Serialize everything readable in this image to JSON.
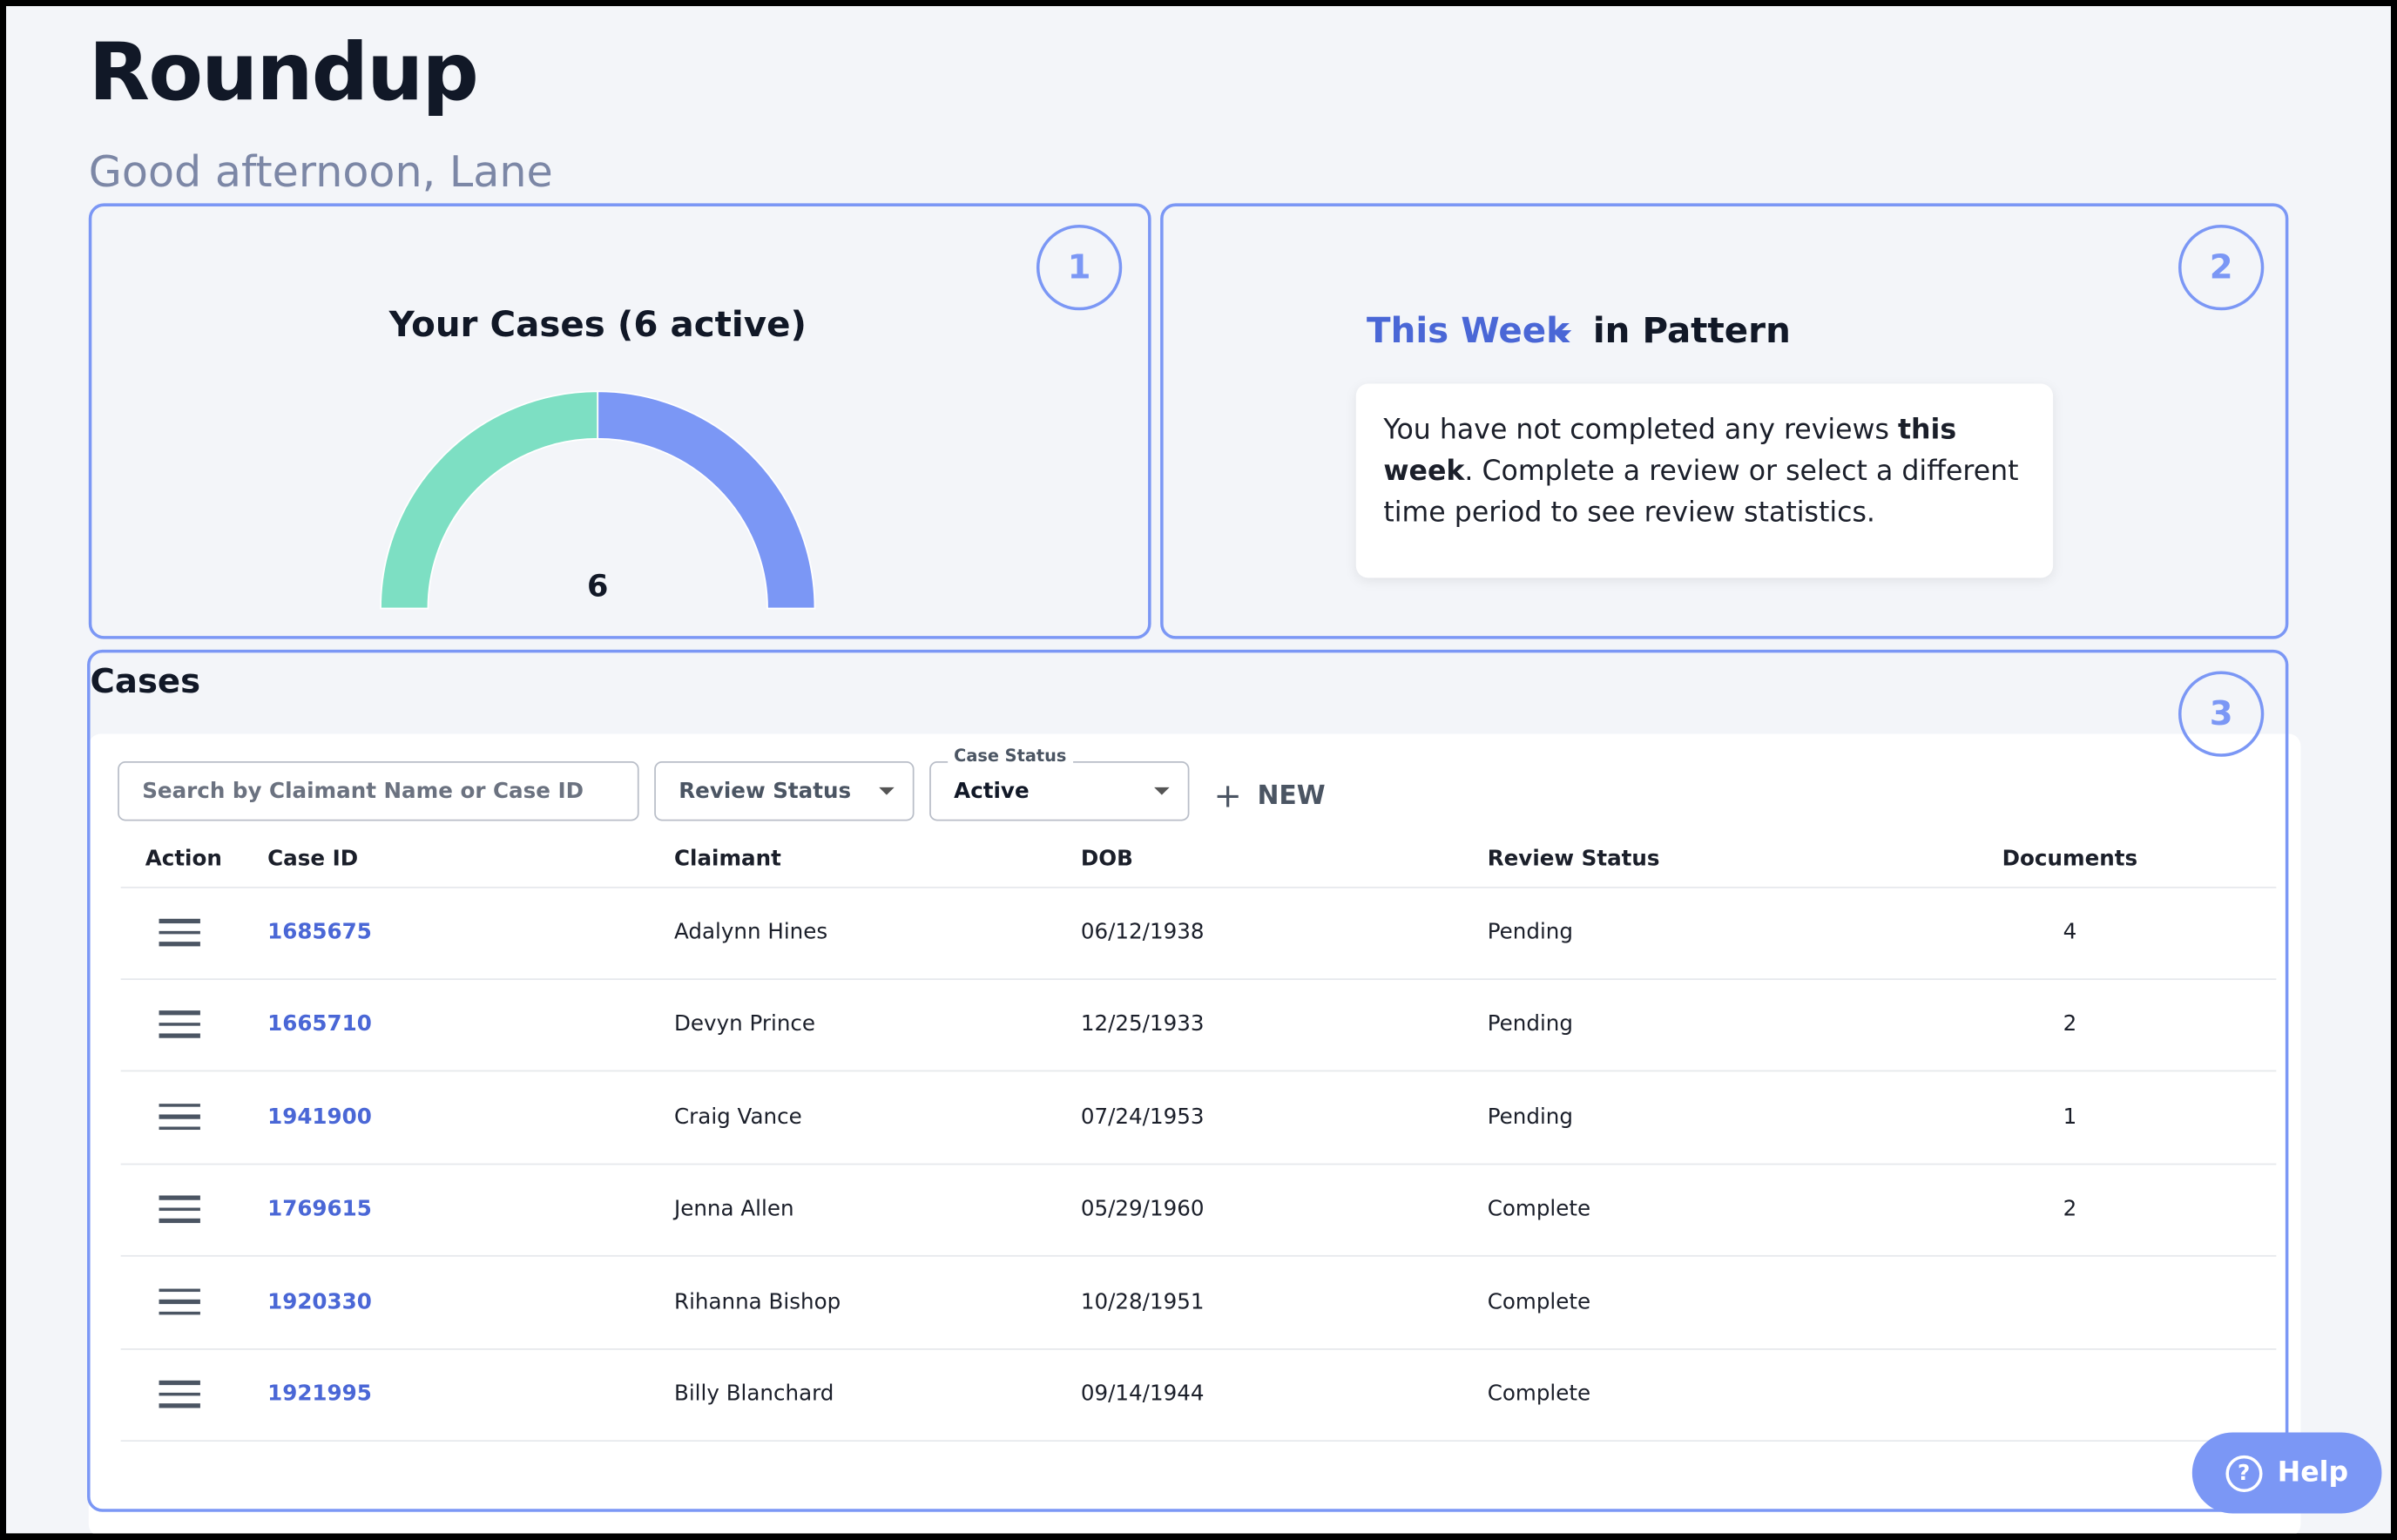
{
  "header": {
    "title": "Roundup",
    "greeting": "Good afternoon, Lane"
  },
  "panels": [
    {
      "badge": "1",
      "title": "Your Cases (6 active)",
      "gauge": {
        "center_label": "6",
        "segments": [
          {
            "value": 3,
            "color": "#7ddfc3"
          },
          {
            "value": 3,
            "color": "#7b97f5"
          }
        ]
      }
    },
    {
      "badge": "2",
      "period": "This Week",
      "suffix": "in Pattern",
      "message": [
        "You have not completed any reviews ",
        "this week",
        ". Complete a review or select a different time period to see review statistics."
      ]
    },
    {
      "badge": "3",
      "title": "Cases"
    }
  ],
  "toolbar": {
    "search_placeholder": "Search by Claimant Name or Case ID",
    "review_status": "Review Status",
    "case_status_label": "Case Status",
    "case_status": "Active",
    "new_button": "NEW"
  },
  "table": {
    "columns": [
      "Action",
      "Case ID",
      "Claimant",
      "DOB",
      "Review Status",
      "Documents"
    ],
    "rows": [
      [
        "1685675",
        "Adalynn Hines",
        "06/12/1938",
        "Pending",
        4
      ],
      [
        "1665710",
        "Devyn Prince",
        "12/25/1933",
        "Pending",
        2
      ],
      [
        "1941900",
        "Craig Vance",
        "07/24/1953",
        "Pending",
        1
      ],
      [
        "1769615",
        "Jenna Allen",
        "05/29/1960",
        "Complete",
        2
      ],
      [
        "1920330",
        "Rihanna Bishop",
        "10/28/1951",
        "Complete",
        null
      ],
      [
        "1921995",
        "Billy Blanchard",
        "09/14/1944",
        "Complete",
        null
      ]
    ]
  },
  "help": "Help"
}
